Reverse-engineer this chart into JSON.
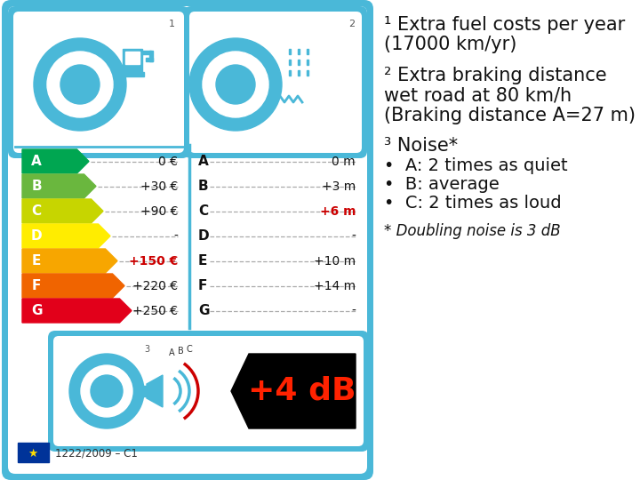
{
  "bg_color": "#ffffff",
  "border_color": "#4ab8d8",
  "label_colors": {
    "A": "#00a651",
    "B": "#6ab73e",
    "C": "#c7d500",
    "D": "#ffed00",
    "E": "#f7a600",
    "F": "#f06400",
    "G": "#e2001a"
  },
  "fuel_values": [
    "0 €",
    "+30 €",
    "+90 €",
    "-",
    "+150 €",
    "+220 €",
    "+250 €"
  ],
  "wet_values": [
    "0 m",
    "+3 m",
    "+6 m",
    "-",
    "+10 m",
    "+14 m",
    "-"
  ],
  "fuel_highlight": 4,
  "wet_highlight": 2,
  "highlight_color": "#cc0000",
  "grades": [
    "A",
    "B",
    "C",
    "D",
    "E",
    "F",
    "G"
  ],
  "noise_db": "+4 dB",
  "standard": "1222/2009 – C1",
  "right_text": [
    [
      "¹ Extra fuel costs per year",
      15,
      false,
      false
    ],
    [
      "(17000 km/yr)",
      15,
      false,
      false
    ],
    [
      "",
      15,
      false,
      false
    ],
    [
      "² Extra braking distance",
      15,
      false,
      false
    ],
    [
      "wet road at 80 km/h",
      15,
      false,
      false
    ],
    [
      "(Braking distance A=27 m)",
      15,
      false,
      false
    ],
    [
      "",
      15,
      false,
      false
    ],
    [
      "³ Noise*",
      15,
      false,
      false
    ],
    [
      "•  A: 2 times as quiet",
      14,
      false,
      false
    ],
    [
      "•  B: average",
      14,
      false,
      false
    ],
    [
      "•  C: 2 times as loud",
      14,
      false,
      false
    ],
    [
      "",
      14,
      false,
      false
    ],
    [
      "* Doubling noise is 3 dB",
      12,
      true,
      false
    ]
  ]
}
